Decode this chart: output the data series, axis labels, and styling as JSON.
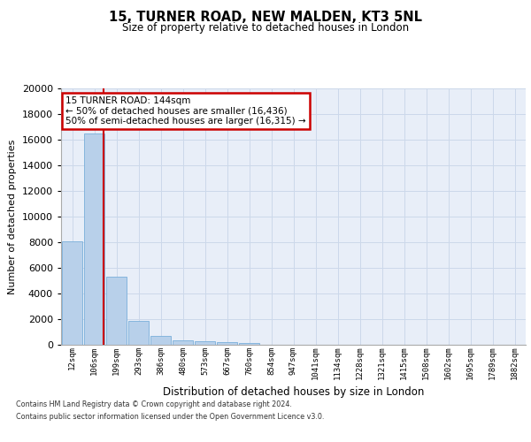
{
  "title1": "15, TURNER ROAD, NEW MALDEN, KT3 5NL",
  "title2": "Size of property relative to detached houses in London",
  "xlabel": "Distribution of detached houses by size in London",
  "ylabel": "Number of detached properties",
  "annotation_title": "15 TURNER ROAD: 144sqm",
  "annotation_line1": "← 50% of detached houses are smaller (16,436)",
  "annotation_line2": "50% of semi-detached houses are larger (16,315) →",
  "footer1": "Contains HM Land Registry data © Crown copyright and database right 2024.",
  "footer2": "Contains public sector information licensed under the Open Government Licence v3.0.",
  "bar_values": [
    8100,
    16500,
    5300,
    1850,
    700,
    370,
    280,
    220,
    170,
    0,
    0,
    0,
    0,
    0,
    0,
    0,
    0,
    0,
    0,
    0,
    0
  ],
  "categories": [
    "12sqm",
    "106sqm",
    "199sqm",
    "293sqm",
    "386sqm",
    "480sqm",
    "573sqm",
    "667sqm",
    "760sqm",
    "854sqm",
    "947sqm",
    "1041sqm",
    "1134sqm",
    "1228sqm",
    "1321sqm",
    "1415sqm",
    "1508sqm",
    "1602sqm",
    "1695sqm",
    "1789sqm",
    "1882sqm"
  ],
  "ylim": [
    0,
    20000
  ],
  "yticks": [
    0,
    2000,
    4000,
    6000,
    8000,
    10000,
    12000,
    14000,
    16000,
    18000,
    20000
  ],
  "property_size": 144,
  "bar_color": "#b8d0ea",
  "bar_edge_color": "#7aafda",
  "vline_color": "#cc0000",
  "annotation_box_color": "#cc0000",
  "grid_color": "#ccd8ea",
  "bg_color": "#e8eef8"
}
